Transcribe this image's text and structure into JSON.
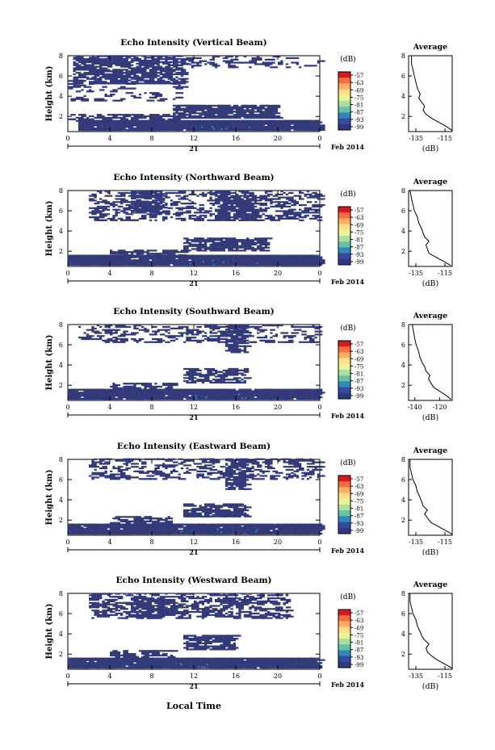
{
  "figure": {
    "xlabel_bottom": "Local Time",
    "date_label": "21",
    "month_label": "Feb 2014",
    "colorbar_label": "(dB)",
    "colorbar_ticks": [
      "-57",
      "-63",
      "-69",
      "-75",
      "-81",
      "-87",
      "-93",
      "-99"
    ],
    "colorbar_colors": [
      "#d7191c",
      "#f46d43",
      "#fdae61",
      "#fee08b",
      "#e6f598",
      "#abdda4",
      "#66c2a5",
      "#3288bd",
      "#3a4a9f",
      "#2e3a80"
    ],
    "echo_color": "#323a7a",
    "x_ticks": [
      "0",
      "4",
      "8",
      "12",
      "16",
      "20",
      "0"
    ],
    "y_ticks": [
      "2",
      "4",
      "6",
      "8"
    ],
    "ylabel": "Height (km)",
    "avg_title": "Average",
    "avg_xlabel": "(dB)"
  },
  "chart_data": [
    {
      "type": "heatmap",
      "title": "Echo Intensity (Vertical Beam)",
      "xlim": [
        0,
        24
      ],
      "ylim": [
        0.5,
        8
      ],
      "avg_profile": {
        "type": "line",
        "xticks": [
          "-135",
          "-115"
        ],
        "xlim": [
          -140,
          -110
        ],
        "x": [
          -110,
          -114,
          -119,
          -124,
          -128,
          -130,
          -129,
          -131,
          -133,
          -132,
          -134,
          -135,
          -136,
          -137,
          -138,
          -138
        ],
        "y": [
          0.6,
          1,
          1.4,
          1.8,
          2.2,
          2.6,
          3.0,
          3.4,
          3.8,
          4.2,
          4.8,
          5.4,
          6.0,
          6.6,
          7.2,
          8.0
        ]
      }
    },
    {
      "type": "heatmap",
      "title": "Echo Intensity (Northward Beam)",
      "xlim": [
        0,
        24
      ],
      "ylim": [
        0.5,
        8
      ],
      "avg_profile": {
        "type": "line",
        "xticks": [
          "-135",
          "-115"
        ],
        "xlim": [
          -140,
          -110
        ],
        "x": [
          -111,
          -116,
          -121,
          -126,
          -127,
          -128,
          -126,
          -129,
          -130,
          -131,
          -133,
          -134,
          -136,
          -137,
          -138,
          -139
        ],
        "y": [
          0.6,
          1,
          1.4,
          1.8,
          2.2,
          2.6,
          3.0,
          3.4,
          3.8,
          4.2,
          4.8,
          5.4,
          6.0,
          6.6,
          7.2,
          8.0
        ]
      }
    },
    {
      "type": "heatmap",
      "title": "Echo Intensity (Southward Beam)",
      "xlim": [
        0,
        24
      ],
      "ylim": [
        0.5,
        8
      ],
      "avg_profile": {
        "type": "line",
        "xticks": [
          "-140",
          "-120"
        ],
        "xlim": [
          -145,
          -110
        ],
        "x": [
          -111,
          -115,
          -120,
          -125,
          -127,
          -129,
          -128,
          -131,
          -132,
          -134,
          -136,
          -137,
          -139,
          -140,
          -141,
          -142
        ],
        "y": [
          0.6,
          1,
          1.4,
          1.8,
          2.2,
          2.6,
          3.0,
          3.4,
          3.8,
          4.2,
          4.8,
          5.4,
          6.0,
          6.6,
          7.2,
          8.0
        ]
      }
    },
    {
      "type": "heatmap",
      "title": "Echo Intensity (Eastward Beam)",
      "xlim": [
        0,
        24
      ],
      "ylim": [
        0.5,
        8
      ],
      "avg_profile": {
        "type": "line",
        "xticks": [
          "-135",
          "-115"
        ],
        "xlim": [
          -140,
          -110
        ],
        "x": [
          -110,
          -115,
          -120,
          -125,
          -127,
          -129,
          -127,
          -130,
          -131,
          -132,
          -134,
          -135,
          -137,
          -138,
          -139,
          -139
        ],
        "y": [
          0.6,
          1,
          1.4,
          1.8,
          2.2,
          2.6,
          3.0,
          3.4,
          3.8,
          4.2,
          4.8,
          5.4,
          6.0,
          6.6,
          7.2,
          8.0
        ]
      }
    },
    {
      "type": "heatmap",
      "title": "Echo Intensity (Westward Beam)",
      "xlim": [
        0,
        24
      ],
      "ylim": [
        0.5,
        8
      ],
      "avg_profile": {
        "type": "line",
        "xticks": [
          "-135",
          "-115"
        ],
        "xlim": [
          -140,
          -110
        ],
        "x": [
          -110,
          -115,
          -120,
          -124,
          -127,
          -128,
          -126,
          -129,
          -131,
          -132,
          -134,
          -135,
          -137,
          -138,
          -139,
          -139
        ],
        "y": [
          0.6,
          1,
          1.4,
          1.8,
          2.2,
          2.6,
          3.0,
          3.4,
          3.8,
          4.2,
          4.8,
          5.4,
          6.0,
          6.6,
          7.2,
          8.0
        ]
      }
    }
  ]
}
